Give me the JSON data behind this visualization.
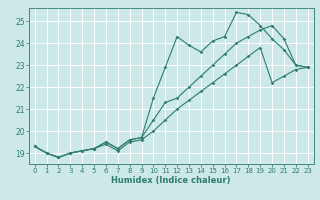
{
  "title": "",
  "xlabel": "Humidex (Indice chaleur)",
  "ylabel": "",
  "bg_color": "#cce8e8",
  "grid_color": "#ffffff",
  "line_color": "#2e7d6e",
  "xlim": [
    -0.5,
    23.5
  ],
  "ylim": [
    18.5,
    25.6
  ],
  "yticks": [
    19,
    20,
    21,
    22,
    23,
    24,
    25
  ],
  "xticks": [
    0,
    1,
    2,
    3,
    4,
    5,
    6,
    7,
    8,
    9,
    10,
    11,
    12,
    13,
    14,
    15,
    16,
    17,
    18,
    19,
    20,
    21,
    22,
    23
  ],
  "line1_x": [
    0,
    1,
    2,
    3,
    4,
    5,
    6,
    7,
    8,
    9,
    10,
    11,
    12,
    13,
    14,
    15,
    16,
    17,
    18,
    19,
    20,
    21,
    22,
    23
  ],
  "line1_y": [
    19.3,
    19.0,
    18.8,
    19.0,
    19.1,
    19.2,
    19.5,
    19.2,
    19.6,
    19.7,
    21.5,
    22.9,
    24.3,
    23.9,
    23.6,
    24.1,
    24.3,
    25.4,
    25.3,
    24.8,
    24.2,
    23.7,
    23.0,
    22.9
  ],
  "line2_x": [
    0,
    1,
    2,
    3,
    4,
    5,
    6,
    7,
    8,
    9,
    10,
    11,
    12,
    13,
    14,
    15,
    16,
    17,
    18,
    19,
    20,
    21,
    22,
    23
  ],
  "line2_y": [
    19.3,
    19.0,
    18.8,
    19.0,
    19.1,
    19.2,
    19.5,
    19.2,
    19.6,
    19.7,
    20.5,
    21.3,
    21.5,
    22.0,
    22.5,
    23.0,
    23.5,
    24.0,
    24.3,
    24.6,
    24.8,
    24.2,
    23.0,
    22.9
  ],
  "line3_x": [
    0,
    1,
    2,
    3,
    4,
    5,
    6,
    7,
    8,
    9,
    10,
    11,
    12,
    13,
    14,
    15,
    16,
    17,
    18,
    19,
    20,
    21,
    22,
    23
  ],
  "line3_y": [
    19.3,
    19.0,
    18.8,
    19.0,
    19.1,
    19.2,
    19.4,
    19.1,
    19.5,
    19.6,
    20.0,
    20.5,
    21.0,
    21.4,
    21.8,
    22.2,
    22.6,
    23.0,
    23.4,
    23.8,
    22.2,
    22.5,
    22.8,
    22.9
  ],
  "tick_fontsize": 5.0,
  "xlabel_fontsize": 6.0,
  "linewidth": 0.8,
  "markersize": 1.8
}
